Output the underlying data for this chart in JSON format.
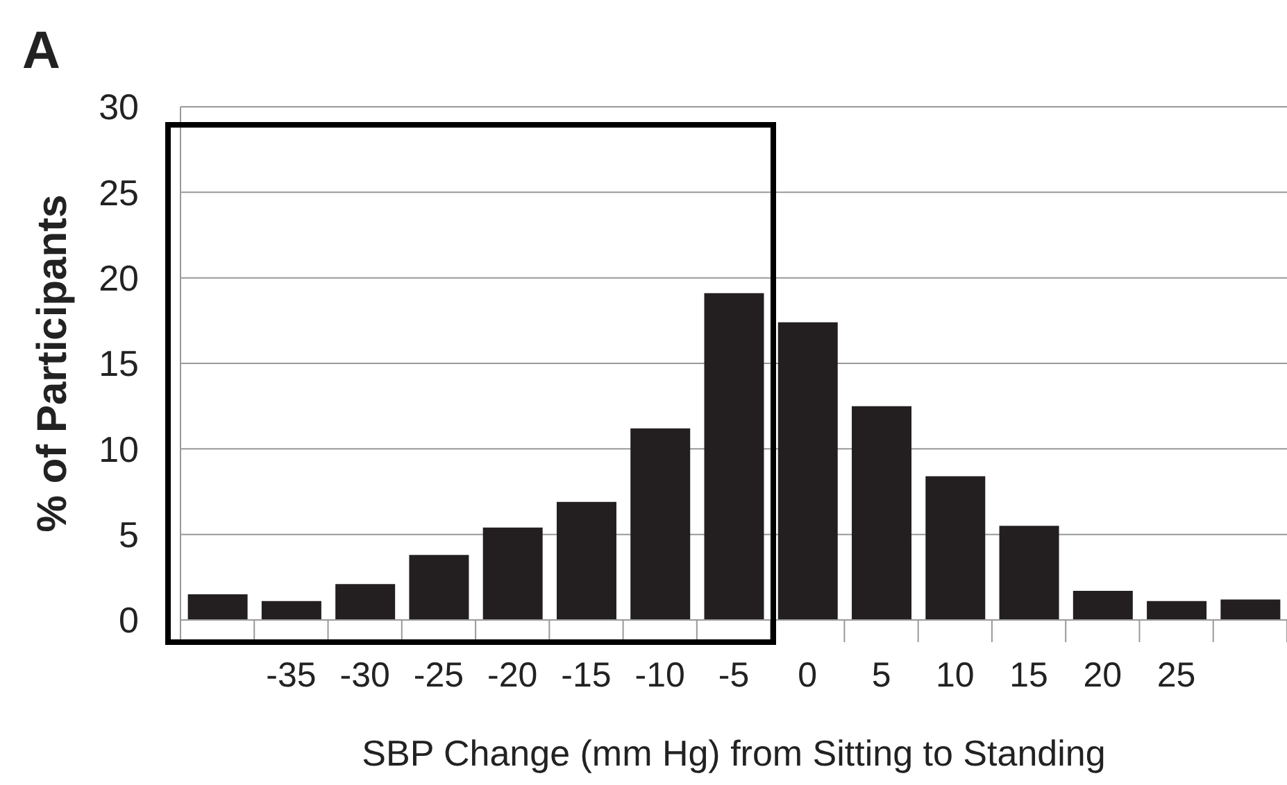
{
  "chart_data": {
    "type": "bar",
    "annotations": [
      "A"
    ],
    "xlabel": "SBP Change (mm Hg) from Sitting to Standing",
    "ylabel": "% of Participants",
    "categories": [
      null,
      "-35",
      "-30",
      "-25",
      "-20",
      "-15",
      "-10",
      "-5",
      "0",
      "5",
      "10",
      "15",
      "20",
      "25",
      null
    ],
    "values": [
      1.5,
      1.1,
      2.1,
      3.8,
      5.4,
      6.9,
      11.2,
      19.1,
      17.4,
      12.5,
      8.4,
      5.5,
      1.7,
      1.1,
      1.2
    ],
    "color": "#231f20",
    "ylim": [
      0,
      30
    ],
    "yticks": [
      0,
      5,
      10,
      15,
      20,
      25,
      30
    ],
    "grid": "y"
  }
}
